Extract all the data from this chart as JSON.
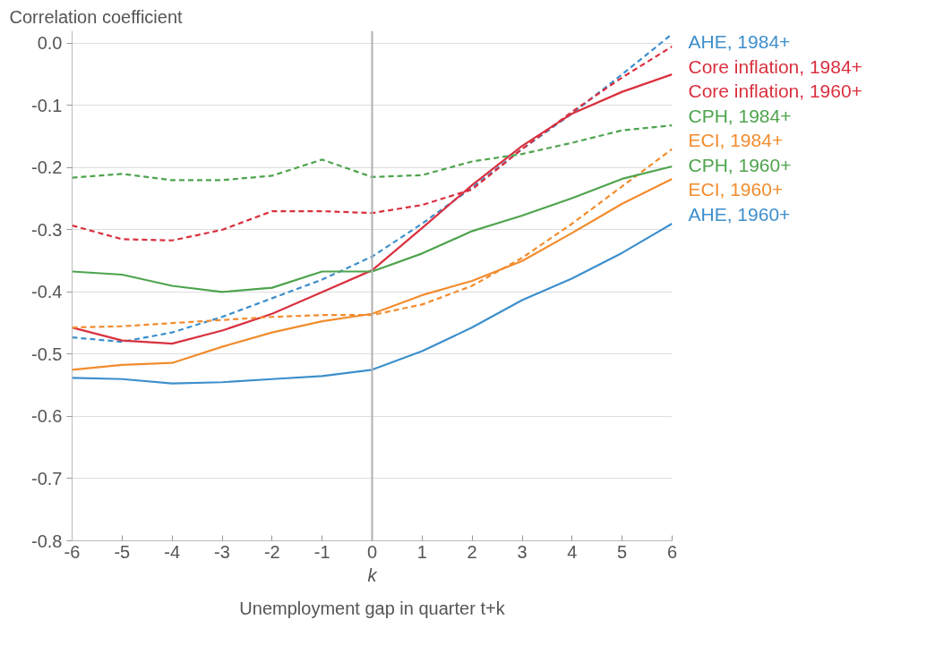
{
  "chart_data": {
    "type": "line",
    "ylabel": "Correlation coefficient",
    "xlabel": "k",
    "annotations": [
      "Unemployment gap in quarter t+k"
    ],
    "x": [
      -6,
      -5,
      -4,
      -3,
      -2,
      -1,
      0,
      1,
      2,
      3,
      4,
      5,
      6
    ],
    "xlim": [
      -6,
      6
    ],
    "xticks": [
      -6,
      -5,
      -4,
      -3,
      -2,
      -1,
      0,
      1,
      2,
      3,
      4,
      5,
      6
    ],
    "ylim": [
      -0.8,
      0.02
    ],
    "yticks": [
      {
        "value": 0,
        "label": "0.0"
      },
      -0.1,
      -0.2,
      -0.3,
      -0.4,
      -0.5,
      -0.6,
      -0.7,
      -0.8
    ],
    "grid": "y",
    "ref_lines": [
      {
        "axis": "x",
        "value": 0,
        "color": "#b0b0b0"
      }
    ],
    "series": [
      {
        "name": "AHE, 1984+",
        "color": "#3d8fcc",
        "line_style": "dashed",
        "values": [
          -0.473,
          -0.48,
          -0.465,
          -0.44,
          -0.41,
          -0.38,
          -0.343,
          -0.29,
          -0.232,
          -0.17,
          -0.113,
          -0.05,
          0.015
        ]
      },
      {
        "name": "Core inflation, 1984+",
        "color": "#d9303e",
        "line_style": "dashed",
        "values": [
          -0.293,
          -0.315,
          -0.317,
          -0.3,
          -0.27,
          -0.27,
          -0.273,
          -0.26,
          -0.235,
          -0.17,
          -0.11,
          -0.055,
          -0.005
        ]
      },
      {
        "name": "Core inflation, 1960+",
        "color": "#d9303e",
        "line_style": "solid",
        "values": [
          -0.457,
          -0.478,
          -0.483,
          -0.462,
          -0.435,
          -0.4,
          -0.365,
          -0.297,
          -0.228,
          -0.165,
          -0.113,
          -0.078,
          -0.05
        ]
      },
      {
        "name": "CPH, 1984+",
        "color": "#4ea44e",
        "line_style": "dashed",
        "values": [
          -0.216,
          -0.21,
          -0.22,
          -0.22,
          -0.213,
          -0.187,
          -0.215,
          -0.212,
          -0.19,
          -0.178,
          -0.16,
          -0.14,
          -0.132
        ]
      },
      {
        "name": "ECI, 1984+",
        "color": "#f28c2e",
        "line_style": "dashed",
        "values": [
          -0.457,
          -0.455,
          -0.45,
          -0.445,
          -0.44,
          -0.437,
          -0.437,
          -0.42,
          -0.39,
          -0.345,
          -0.29,
          -0.23,
          -0.17
        ]
      },
      {
        "name": "CPH, 1960+",
        "color": "#4ea44e",
        "line_style": "solid",
        "values": [
          -0.367,
          -0.372,
          -0.39,
          -0.4,
          -0.393,
          -0.367,
          -0.367,
          -0.338,
          -0.302,
          -0.277,
          -0.249,
          -0.218,
          -0.198
        ]
      },
      {
        "name": "ECI, 1960+",
        "color": "#f28c2e",
        "line_style": "solid",
        "values": [
          -0.525,
          -0.517,
          -0.514,
          -0.488,
          -0.465,
          -0.447,
          -0.435,
          -0.405,
          -0.382,
          -0.35,
          -0.305,
          -0.258,
          -0.218
        ]
      },
      {
        "name": "AHE, 1960+",
        "color": "#3d8fcc",
        "line_style": "solid",
        "values": [
          -0.538,
          -0.54,
          -0.547,
          -0.545,
          -0.54,
          -0.535,
          -0.525,
          -0.495,
          -0.457,
          -0.413,
          -0.378,
          -0.337,
          -0.29
        ]
      }
    ]
  }
}
